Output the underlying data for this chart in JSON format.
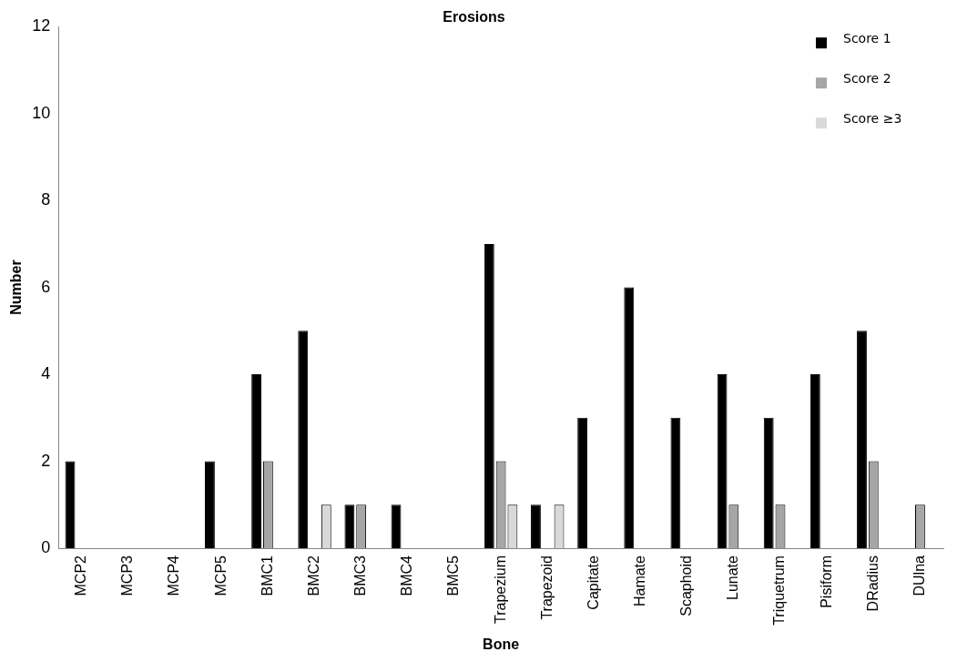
{
  "chart_data": {
    "type": "bar",
    "title": "Erosions",
    "xlabel": "Bone",
    "ylabel": "Number",
    "categories": [
      "MCP2",
      "MCP3",
      "MCP4",
      "MCP5",
      "BMC1",
      "BMC2",
      "BMC3",
      "BMC4",
      "BMC5",
      "Trapezium",
      "Trapezoid",
      "Capitate",
      "Hamate",
      "Scaphoid",
      "Lunate",
      "Triquetrum",
      "Pisiform",
      "DRadius",
      "DUlna"
    ],
    "series": [
      {
        "name": "Score 1",
        "color": "#000000",
        "values": [
          2,
          0,
          0,
          2,
          4,
          5,
          1,
          1,
          0,
          7,
          1,
          3,
          6,
          3,
          4,
          3,
          4,
          5,
          0
        ]
      },
      {
        "name": "Score 2",
        "color": "#a6a6a6",
        "values": [
          0,
          0,
          0,
          0,
          2,
          0,
          1,
          0,
          0,
          2,
          0,
          0,
          0,
          0,
          1,
          1,
          0,
          2,
          1
        ]
      },
      {
        "name": "Score ≥3",
        "color": "#d9d9d9",
        "values": [
          0,
          0,
          0,
          0,
          0,
          1,
          0,
          0,
          0,
          1,
          1,
          0,
          0,
          0,
          0,
          0,
          0,
          0,
          0
        ]
      }
    ],
    "ylim": [
      0,
      12
    ],
    "yticks": [
      0,
      2,
      4,
      6,
      8,
      10,
      12
    ],
    "grid": false,
    "legend": "top right"
  }
}
